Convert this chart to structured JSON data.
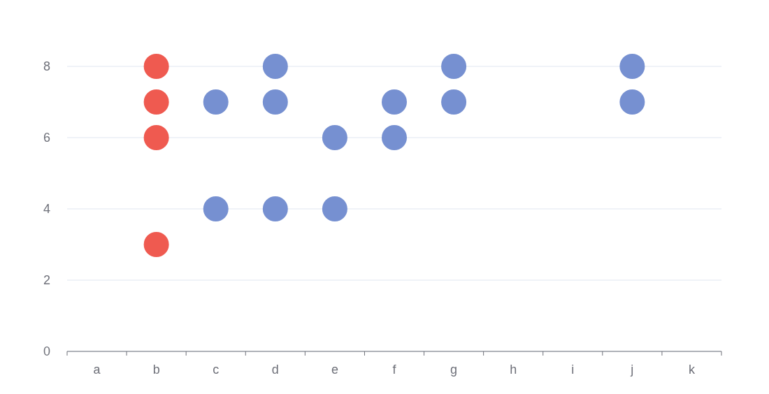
{
  "chart_data": {
    "type": "scatter",
    "categories": [
      "a",
      "b",
      "c",
      "d",
      "e",
      "f",
      "g",
      "h",
      "i",
      "j",
      "k"
    ],
    "series": [
      {
        "color": "#ef5a50",
        "x": [
          "b",
          "b",
          "b",
          "b"
        ],
        "values": [
          8,
          7,
          6,
          3
        ]
      },
      {
        "color": "#7690d1",
        "x": [
          "c",
          "c",
          "d",
          "d",
          "d",
          "e",
          "e",
          "f",
          "f",
          "g",
          "g",
          "j",
          "j"
        ],
        "values": [
          7,
          4,
          8,
          7,
          4,
          6,
          4,
          7,
          6,
          8,
          7,
          8,
          7
        ]
      }
    ],
    "ylim": [
      0,
      8
    ],
    "yticks": [
      0,
      2,
      4,
      6,
      8
    ],
    "grid": "y",
    "marker": "circle",
    "legend": false
  }
}
